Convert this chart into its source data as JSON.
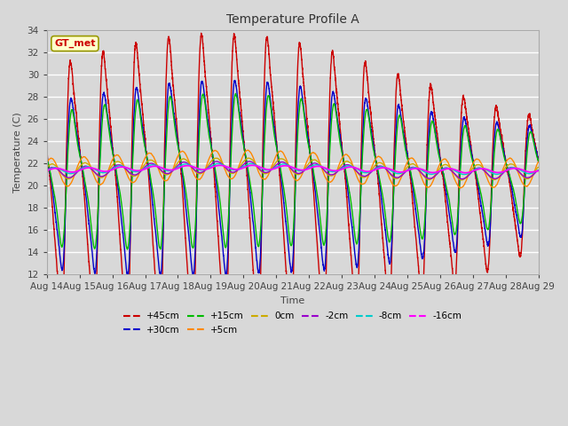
{
  "title": "Temperature Profile A",
  "xlabel": "Time",
  "ylabel": "Temperature (C)",
  "ylim": [
    12,
    34
  ],
  "xlim": [
    0,
    15
  ],
  "background_color": "#d8d8d8",
  "plot_bg_color": "#d8d8d8",
  "grid_color": "#ffffff",
  "series": [
    {
      "label": "+45cm",
      "color": "#cc0000",
      "lw": 1.0
    },
    {
      "label": "+30cm",
      "color": "#0000cc",
      "lw": 1.0
    },
    {
      "label": "+15cm",
      "color": "#00bb00",
      "lw": 1.0
    },
    {
      "label": "+5cm",
      "color": "#ff8800",
      "lw": 1.0
    },
    {
      "label": "0cm",
      "color": "#ccaa00",
      "lw": 1.0
    },
    {
      "label": "-2cm",
      "color": "#9900cc",
      "lw": 1.0
    },
    {
      "label": "-8cm",
      "color": "#00cccc",
      "lw": 1.0
    },
    {
      "label": "-16cm",
      "color": "#ff00ff",
      "lw": 1.3
    }
  ],
  "xtick_labels": [
    "Aug 14",
    "Aug 15",
    "Aug 16",
    "Aug 17",
    "Aug 18",
    "Aug 19",
    "Aug 20",
    "Aug 21",
    "Aug 22",
    "Aug 23",
    "Aug 24",
    "Aug 25",
    "Aug 26",
    "Aug 27",
    "Aug 28",
    "Aug 29"
  ],
  "annotation_text": "GT_met",
  "annotation_color": "#cc0000",
  "annotation_bg": "#ffffcc",
  "annotation_edge": "#999900"
}
